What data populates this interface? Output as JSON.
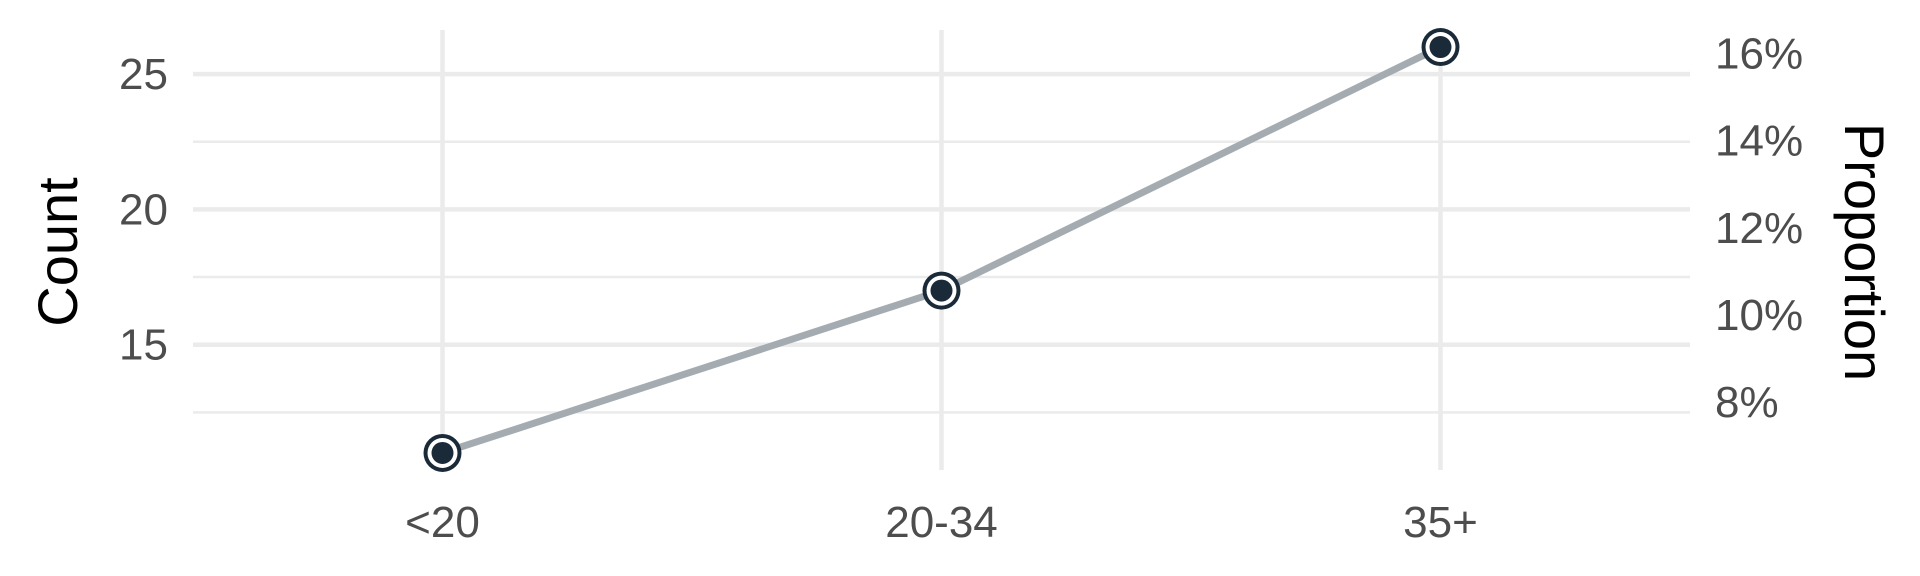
{
  "chart_data": {
    "type": "line",
    "categories": [
      "<20",
      "20-34",
      "35+"
    ],
    "values": [
      11,
      17,
      26
    ],
    "ylabel": "Count",
    "ylabel_right": "Proportion",
    "y_ticks": [
      15,
      20,
      25
    ],
    "y_ticks_labels": [
      "15",
      "20",
      "25"
    ],
    "y_minor_ticks": [
      12.5,
      17.5,
      22.5
    ],
    "ylim": [
      10.37,
      26.63
    ],
    "y2_ticks": [
      "8%",
      "10%",
      "12%",
      "14%",
      "16%"
    ],
    "y2_tick_values": [
      0.08,
      0.1,
      0.12,
      0.14,
      0.16
    ],
    "y2_scale_factor": 161,
    "grid": true,
    "colors": {
      "line": "#a4acb2",
      "point_fill": "#1b2a38",
      "point_ring": "#ffffff",
      "grid": "#ebebeb"
    }
  }
}
